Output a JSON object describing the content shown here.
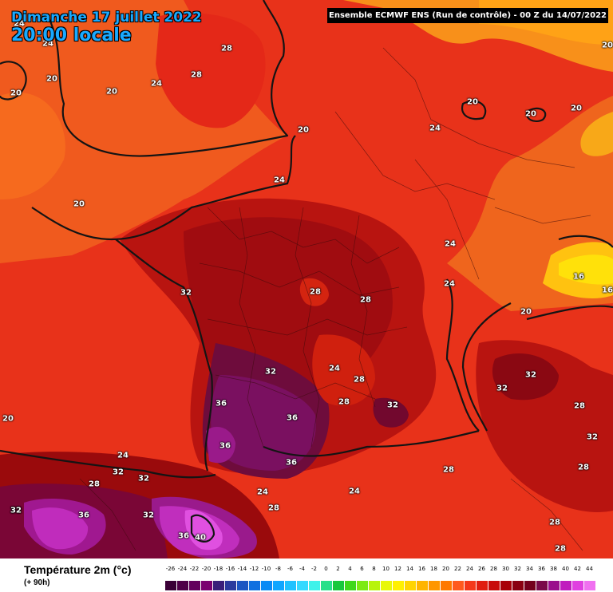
{
  "header": {
    "date": "Dimanche 17 juillet 2022",
    "time": "20:00 locale",
    "run": "Ensemble ECMWF ENS  (Run de contrôle)  -  00 Z du 14/07/2022"
  },
  "footer": {
    "variable": "Température 2m (°c)",
    "lead": "(+ 90h)"
  },
  "legend": {
    "ticks": [
      "-26",
      "-24",
      "-22",
      "-20",
      "-18",
      "-16",
      "-14",
      "-12",
      "-10",
      "-8",
      "-6",
      "-4",
      "-2",
      "0",
      "2",
      "4",
      "6",
      "8",
      "10",
      "12",
      "14",
      "16",
      "18",
      "20",
      "22",
      "24",
      "26",
      "28",
      "30",
      "32",
      "34",
      "36",
      "38",
      "40",
      "42",
      "44"
    ],
    "colors": [
      "#3a0036",
      "#4f0048",
      "#63005c",
      "#7a0070",
      "#3a1f7a",
      "#2b3b9e",
      "#1c56c2",
      "#1070e0",
      "#0a8af5",
      "#10a6ff",
      "#1fc2ff",
      "#35d9ff",
      "#3ff2ea",
      "#28e08a",
      "#18c83c",
      "#40d81a",
      "#7cea12",
      "#b8f40a",
      "#e8f80a",
      "#fff000",
      "#ffd400",
      "#ffb400",
      "#ff9600",
      "#ff7800",
      "#ff5a1e",
      "#f4381a",
      "#e01e10",
      "#c80c0a",
      "#a80008",
      "#8a0010",
      "#74001c",
      "#7a0a4a",
      "#9a108c",
      "#c01cbe",
      "#e040e0",
      "#f070f0"
    ]
  },
  "map_labels": [
    {
      "t": "24"
    },
    {
      "t": "28"
    },
    {
      "t": "28"
    },
    {
      "t": "24"
    },
    {
      "t": "20"
    },
    {
      "t": "20"
    },
    {
      "t": "20"
    },
    {
      "t": "24"
    },
    {
      "t": "20"
    },
    {
      "t": "20"
    },
    {
      "t": "24"
    },
    {
      "t": "20"
    },
    {
      "t": "20"
    },
    {
      "t": "20"
    },
    {
      "t": "20"
    },
    {
      "t": "24"
    },
    {
      "t": "24"
    },
    {
      "t": "16"
    },
    {
      "t": "16"
    },
    {
      "t": "20"
    },
    {
      "t": "24"
    },
    {
      "t": "32"
    },
    {
      "t": "28"
    },
    {
      "t": "28"
    },
    {
      "t": "32"
    },
    {
      "t": "24"
    },
    {
      "t": "28"
    },
    {
      "t": "28"
    },
    {
      "t": "32"
    },
    {
      "t": "32"
    },
    {
      "t": "36"
    },
    {
      "t": "36"
    },
    {
      "t": "36"
    },
    {
      "t": "36"
    },
    {
      "t": "32"
    },
    {
      "t": "32"
    },
    {
      "t": "28"
    },
    {
      "t": "28"
    },
    {
      "t": "32"
    },
    {
      "t": "28"
    },
    {
      "t": "20"
    },
    {
      "t": "24"
    },
    {
      "t": "32"
    },
    {
      "t": "32"
    },
    {
      "t": "28"
    },
    {
      "t": "24"
    },
    {
      "t": "28"
    },
    {
      "t": "24"
    },
    {
      "t": "32"
    },
    {
      "t": "36"
    },
    {
      "t": "32"
    },
    {
      "t": "36"
    },
    {
      "t": "40"
    },
    {
      "t": "28"
    },
    {
      "t": "28"
    }
  ]
}
